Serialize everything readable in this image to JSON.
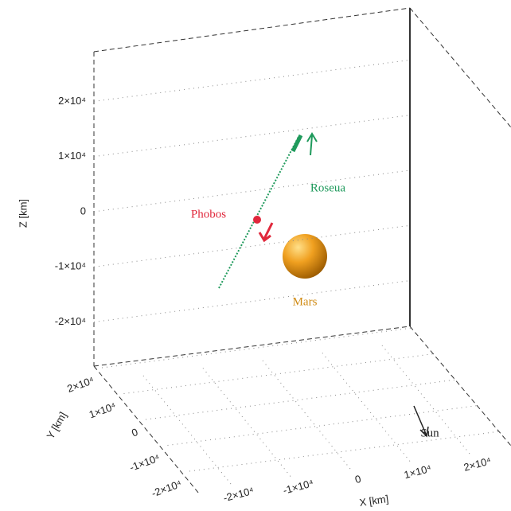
{
  "chart_data": {
    "type": "box3d",
    "zlabel": "Z [km]",
    "ylabel": "Y [km]",
    "xlabel": "X [km]",
    "zlim": [
      -28000,
      29000
    ],
    "zticks": [
      {
        "value": 20000,
        "label": "2×10⁴"
      },
      {
        "value": 10000,
        "label": "1×10⁴"
      },
      0,
      {
        "value": -10000,
        "label": "-1×10⁴"
      },
      {
        "value": -20000,
        "label": "-2×10⁴"
      }
    ],
    "yticks": [
      {
        "value": 20000,
        "label": "2×10⁴"
      },
      {
        "value": 10000,
        "label": "1×10⁴"
      },
      0,
      {
        "value": -10000,
        "label": "-1×10⁴"
      },
      {
        "value": -20000,
        "label": "-2×10⁴"
      }
    ],
    "xticks": [
      {
        "value": -20000,
        "label": "-2×10⁴"
      },
      {
        "value": -10000,
        "label": "-1×10⁴"
      },
      0,
      {
        "value": 10000,
        "label": "1×10⁴"
      },
      {
        "value": 20000,
        "label": "2×10⁴"
      }
    ],
    "annotations": [
      {
        "text": "Phobos",
        "color": "#e0283c"
      },
      {
        "text": "Roseua",
        "color": "#1f9a5c"
      },
      {
        "text": "Mars",
        "color": "#d08a12"
      },
      {
        "text": "Sun",
        "color": "#222222"
      }
    ],
    "grid": true
  }
}
